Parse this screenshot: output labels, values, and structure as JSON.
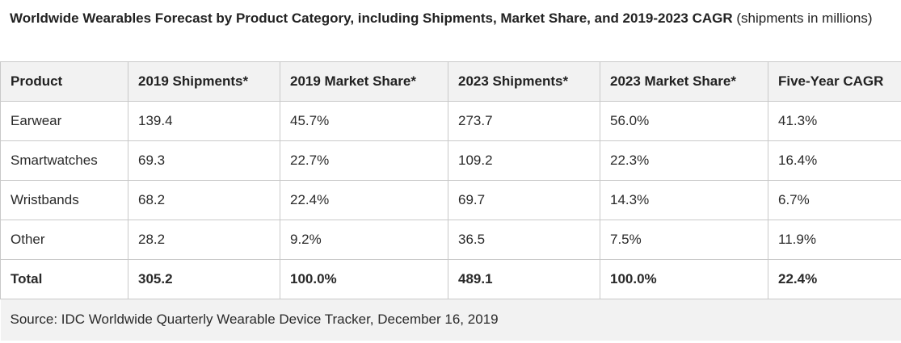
{
  "caption": {
    "bold": "Worldwide Wearables Forecast by Product Category, including Shipments, Market Share, and 2019-2023 CAGR",
    "rest": " (shipments in millions)"
  },
  "table": {
    "headers": [
      "Product",
      "2019 Shipments*",
      "2019 Market Share*",
      "2023 Shipments*",
      "2023 Market Share*",
      "Five-Year CAGR"
    ],
    "rows": [
      [
        "Earwear",
        "139.4",
        "45.7%",
        "273.7",
        "56.0%",
        "41.3%"
      ],
      [
        "Smartwatches",
        "69.3",
        "22.7%",
        "109.2",
        "22.3%",
        "16.4%"
      ],
      [
        "Wristbands",
        "68.2",
        "22.4%",
        "69.7",
        "14.3%",
        "6.7%"
      ],
      [
        "Other",
        "28.2",
        "9.2%",
        "36.5",
        "7.5%",
        "11.9%"
      ]
    ],
    "total": [
      "Total",
      "305.2",
      "100.0%",
      "489.1",
      "100.0%",
      "22.4%"
    ],
    "source": "Source: IDC Worldwide Quarterly Wearable Device Tracker, December 16, 2019"
  }
}
